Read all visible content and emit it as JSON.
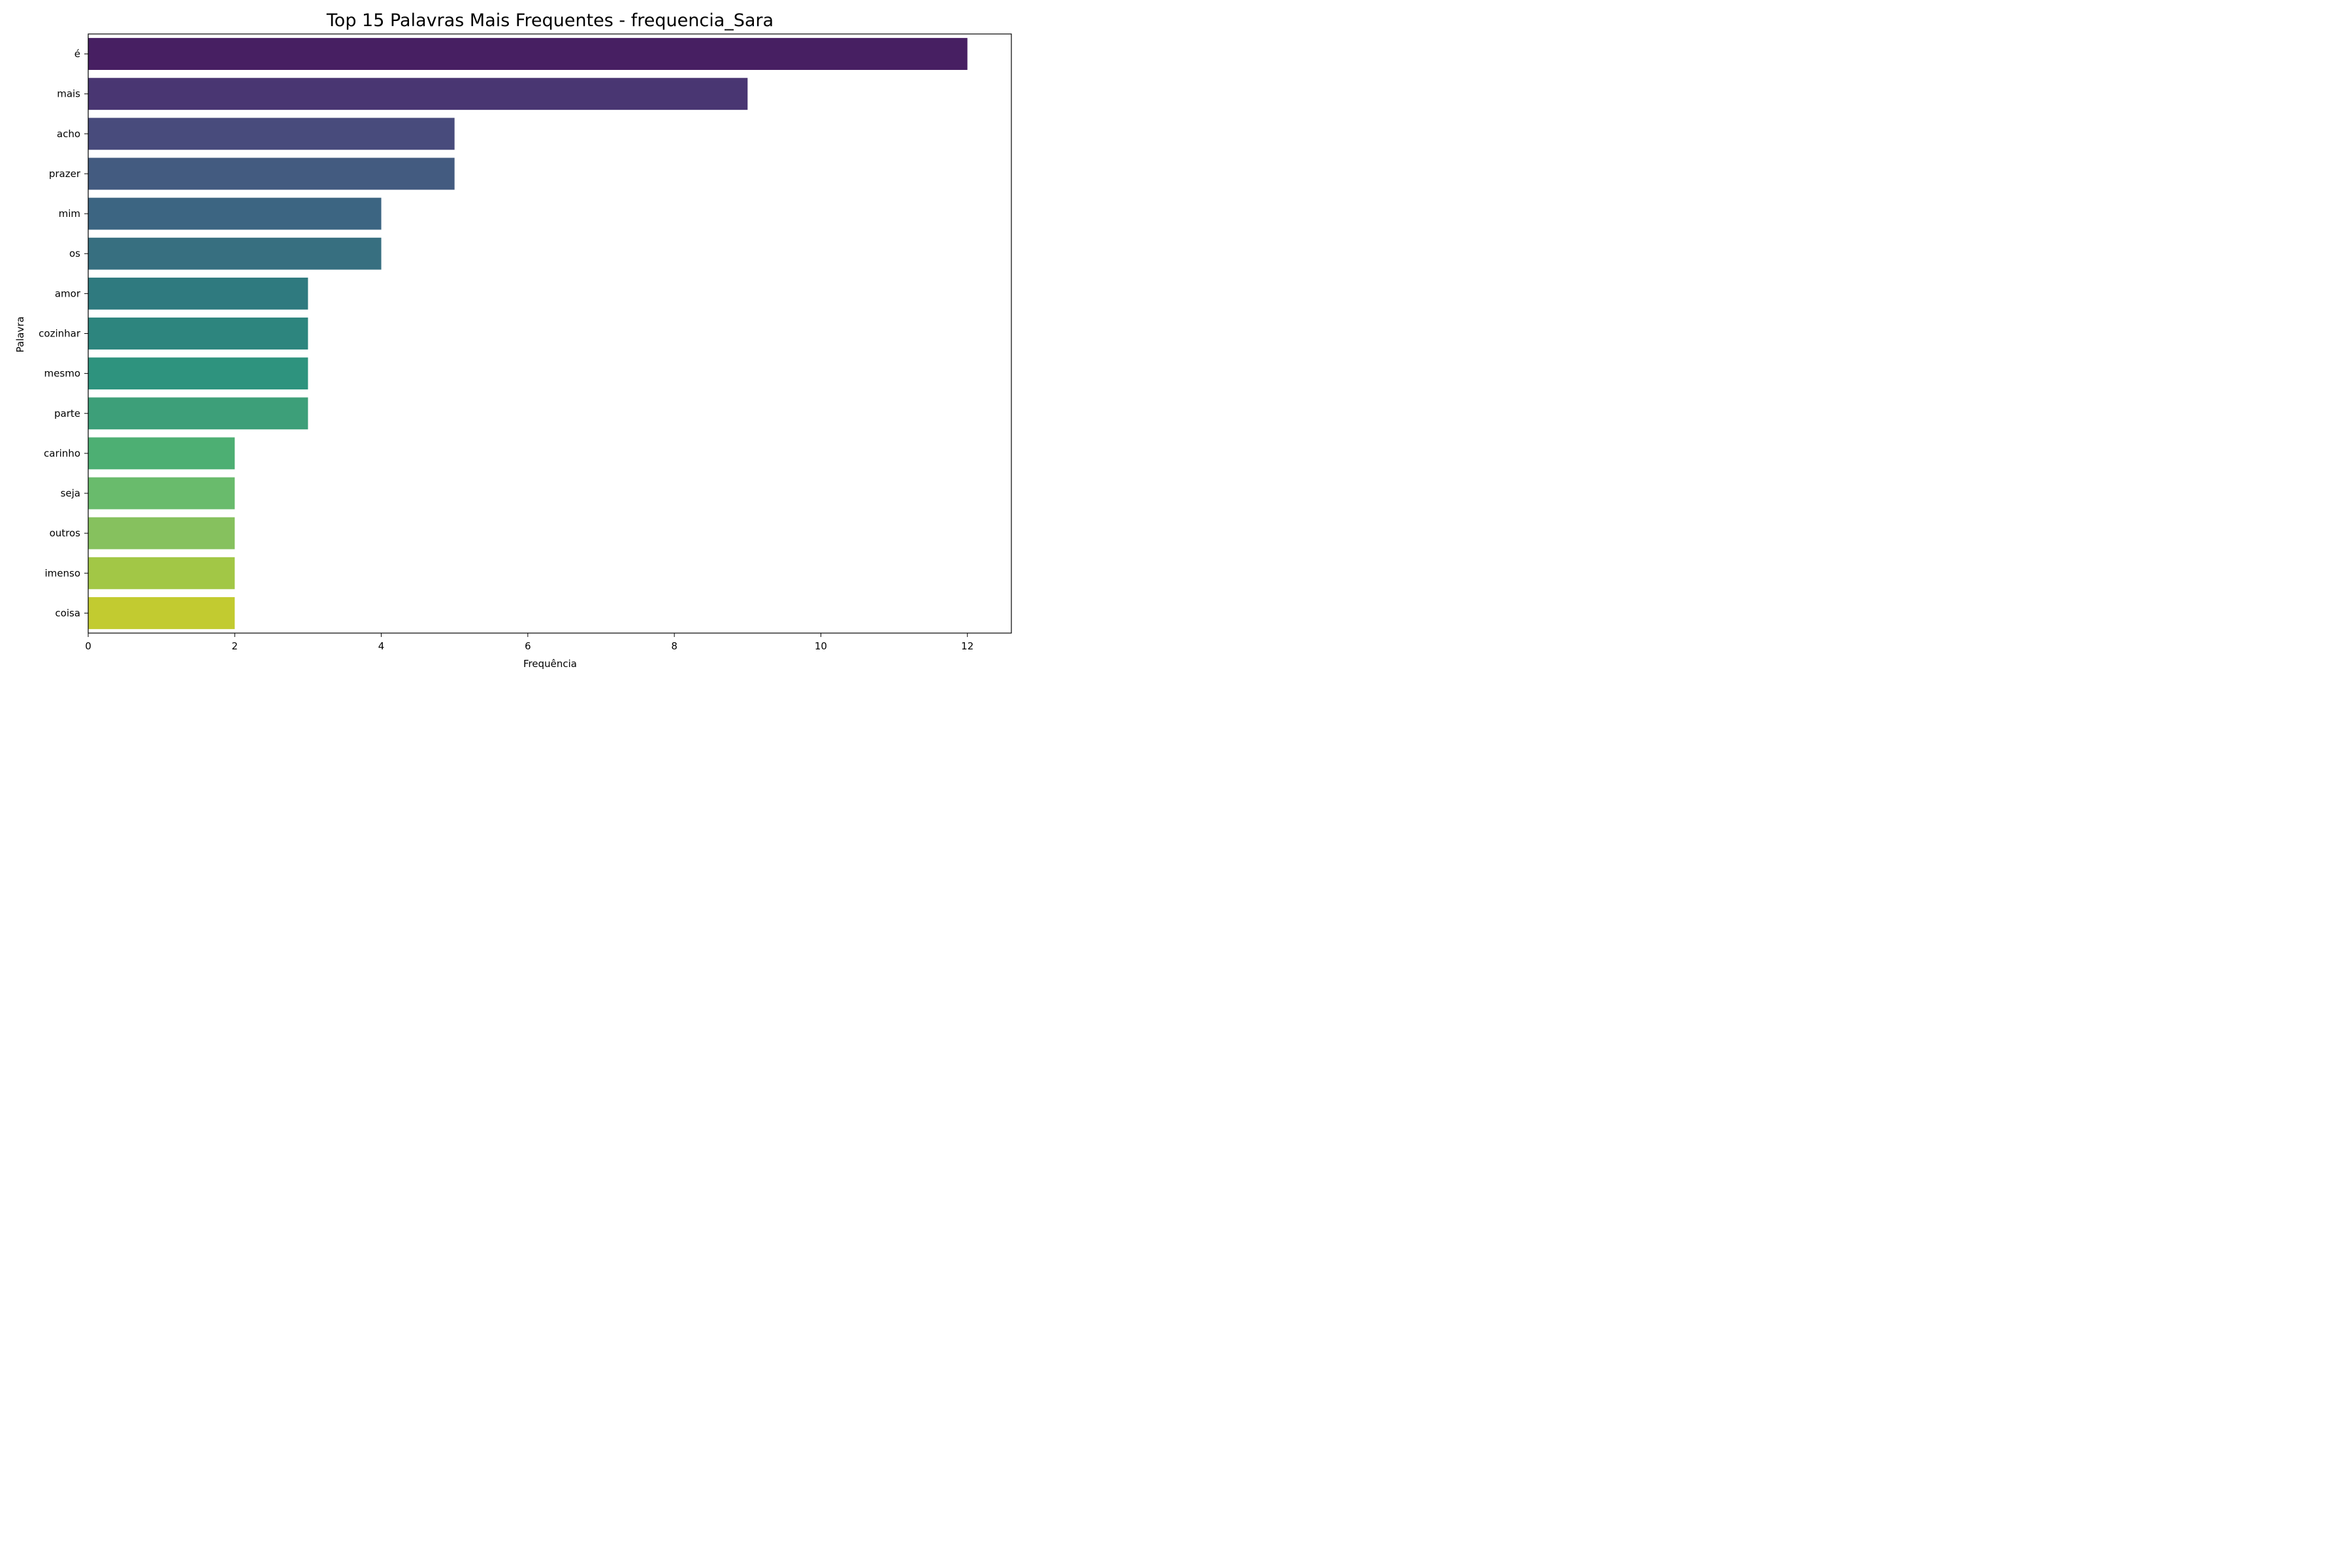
{
  "chart_data": {
    "type": "bar",
    "orientation": "horizontal",
    "title": "Top 15 Palavras Mais Frequentes - frequencia_Sara",
    "xlabel": "Frequência",
    "ylabel": "Palavra",
    "xlim": [
      0,
      12.6
    ],
    "xticks": [
      0,
      2,
      4,
      6,
      8,
      10,
      12
    ],
    "grid": false,
    "categories": [
      "é",
      "mais",
      "acho",
      "prazer",
      "mim",
      "os",
      "amor",
      "cozinhar",
      "mesmo",
      "parte",
      "carinho",
      "seja",
      "outros",
      "imenso",
      "coisa"
    ],
    "values": [
      12,
      9,
      5,
      5,
      4,
      4,
      3,
      3,
      3,
      3,
      2,
      2,
      2,
      2,
      2
    ],
    "colors": [
      "#471f62",
      "#493672",
      "#484b7c",
      "#435b80",
      "#3c6582",
      "#376f80",
      "#2f7a7f",
      "#2d857e",
      "#2e937e",
      "#3d9f79",
      "#4daf73",
      "#69bb6c",
      "#86c15e",
      "#a2c746",
      "#c2cb30"
    ]
  }
}
